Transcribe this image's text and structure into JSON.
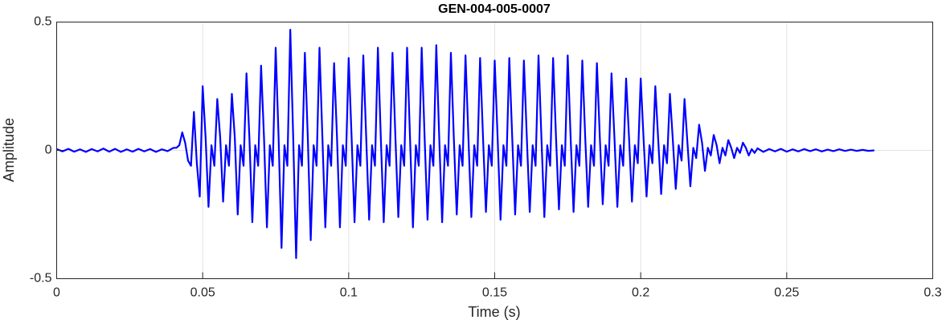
{
  "chart_data": {
    "type": "line",
    "title": "GEN-004-005-0007",
    "xlabel": "Time (s)",
    "ylabel": "Amplitude",
    "color": "#0000ff",
    "grid": true,
    "xlim": [
      0,
      0.3
    ],
    "ylim": [
      -0.5,
      0.5
    ],
    "xticks": [
      0,
      0.05,
      0.1,
      0.15,
      0.2,
      0.25,
      0.3
    ],
    "yticks": [
      -0.5,
      0,
      0.5
    ],
    "x": [
      0,
      0.002,
      0.004,
      0.006,
      0.008,
      0.01,
      0.012,
      0.014,
      0.016,
      0.018,
      0.02,
      0.022,
      0.024,
      0.026,
      0.028,
      0.03,
      0.032,
      0.034,
      0.036,
      0.038,
      0.04,
      0.041,
      0.042,
      0.043,
      0.044,
      0.045,
      0.046,
      0.047,
      0.048,
      0.049,
      0.05,
      0.051,
      0.052,
      0.053,
      0.054,
      0.055,
      0.056,
      0.057,
      0.058,
      0.059,
      0.06,
      0.061,
      0.062,
      0.063,
      0.064,
      0.065,
      0.066,
      0.067,
      0.068,
      0.069,
      0.07,
      0.071,
      0.072,
      0.073,
      0.074,
      0.075,
      0.076,
      0.077,
      0.078,
      0.079,
      0.08,
      0.081,
      0.082,
      0.083,
      0.084,
      0.085,
      0.086,
      0.087,
      0.088,
      0.089,
      0.09,
      0.091,
      0.092,
      0.093,
      0.094,
      0.095,
      0.096,
      0.097,
      0.098,
      0.099,
      0.1,
      0.101,
      0.102,
      0.103,
      0.104,
      0.105,
      0.106,
      0.107,
      0.108,
      0.109,
      0.11,
      0.111,
      0.112,
      0.113,
      0.114,
      0.115,
      0.116,
      0.117,
      0.118,
      0.119,
      0.12,
      0.121,
      0.122,
      0.123,
      0.124,
      0.125,
      0.126,
      0.127,
      0.128,
      0.129,
      0.13,
      0.131,
      0.132,
      0.133,
      0.134,
      0.135,
      0.136,
      0.137,
      0.138,
      0.139,
      0.14,
      0.141,
      0.142,
      0.143,
      0.144,
      0.145,
      0.146,
      0.147,
      0.148,
      0.149,
      0.15,
      0.151,
      0.152,
      0.153,
      0.154,
      0.155,
      0.156,
      0.157,
      0.158,
      0.159,
      0.16,
      0.161,
      0.162,
      0.163,
      0.164,
      0.165,
      0.166,
      0.167,
      0.168,
      0.169,
      0.17,
      0.171,
      0.172,
      0.173,
      0.174,
      0.175,
      0.176,
      0.177,
      0.178,
      0.179,
      0.18,
      0.181,
      0.182,
      0.183,
      0.184,
      0.185,
      0.186,
      0.187,
      0.188,
      0.189,
      0.19,
      0.191,
      0.192,
      0.193,
      0.194,
      0.195,
      0.196,
      0.197,
      0.198,
      0.199,
      0.2,
      0.201,
      0.202,
      0.203,
      0.204,
      0.205,
      0.206,
      0.207,
      0.208,
      0.209,
      0.21,
      0.211,
      0.212,
      0.213,
      0.214,
      0.215,
      0.216,
      0.217,
      0.218,
      0.219,
      0.22,
      0.221,
      0.222,
      0.223,
      0.224,
      0.225,
      0.226,
      0.227,
      0.228,
      0.229,
      0.23,
      0.231,
      0.232,
      0.233,
      0.234,
      0.235,
      0.236,
      0.237,
      0.238,
      0.239,
      0.24,
      0.242,
      0.244,
      0.246,
      0.248,
      0.25,
      0.252,
      0.254,
      0.256,
      0.258,
      0.26,
      0.262,
      0.264,
      0.266,
      0.268,
      0.27,
      0.272,
      0.274,
      0.276,
      0.278,
      0.28
    ],
    "values": [
      0.005,
      -0.004,
      0.006,
      -0.005,
      0.004,
      -0.006,
      0.005,
      -0.004,
      0.007,
      -0.005,
      0.006,
      -0.006,
      0.004,
      -0.005,
      0.006,
      -0.004,
      0.005,
      -0.006,
      0.004,
      -0.003,
      0.01,
      0.01,
      0.02,
      0.07,
      0.03,
      -0.04,
      -0.06,
      0.15,
      -0.05,
      -0.18,
      0.25,
      0.05,
      -0.22,
      0.02,
      -0.06,
      0.2,
      0.05,
      -0.2,
      0.02,
      -0.06,
      0.22,
      0.05,
      -0.25,
      0.02,
      -0.06,
      0.3,
      0.05,
      -0.28,
      0.02,
      -0.06,
      0.33,
      0.05,
      -0.3,
      0.02,
      -0.06,
      0.4,
      0.05,
      -0.38,
      0.02,
      -0.06,
      0.47,
      0.05,
      -0.42,
      0.02,
      -0.06,
      0.38,
      0.05,
      -0.35,
      0.02,
      -0.06,
      0.4,
      0.05,
      -0.3,
      0.02,
      -0.06,
      0.34,
      0.05,
      -0.3,
      0.02,
      -0.06,
      0.36,
      0.05,
      -0.28,
      0.02,
      -0.06,
      0.37,
      0.05,
      -0.27,
      0.02,
      -0.06,
      0.4,
      0.05,
      -0.28,
      0.02,
      -0.06,
      0.38,
      0.05,
      -0.26,
      0.02,
      -0.06,
      0.4,
      0.05,
      -0.3,
      0.02,
      -0.06,
      0.4,
      0.05,
      -0.27,
      0.02,
      -0.06,
      0.41,
      0.05,
      -0.28,
      0.02,
      -0.06,
      0.38,
      0.05,
      -0.25,
      0.02,
      -0.06,
      0.37,
      0.05,
      -0.26,
      0.02,
      -0.06,
      0.36,
      0.05,
      -0.24,
      0.02,
      -0.06,
      0.35,
      0.05,
      -0.27,
      0.02,
      -0.06,
      0.36,
      0.05,
      -0.25,
      0.02,
      -0.06,
      0.35,
      0.05,
      -0.24,
      0.02,
      -0.06,
      0.37,
      0.05,
      -0.26,
      0.02,
      -0.06,
      0.36,
      0.05,
      -0.23,
      0.02,
      -0.06,
      0.37,
      0.05,
      -0.24,
      0.02,
      -0.06,
      0.35,
      0.05,
      -0.22,
      0.02,
      -0.06,
      0.34,
      0.05,
      -0.21,
      0.02,
      -0.06,
      0.3,
      0.05,
      -0.22,
      0.02,
      -0.06,
      0.28,
      0.05,
      -0.2,
      0.02,
      -0.05,
      0.28,
      0.04,
      -0.18,
      0.02,
      -0.05,
      0.25,
      0.04,
      -0.17,
      0.02,
      -0.05,
      0.22,
      0.04,
      -0.15,
      0.02,
      -0.04,
      0.2,
      0.03,
      -0.14,
      0.01,
      -0.03,
      0.1,
      0.03,
      -0.08,
      0.01,
      -0.02,
      0.06,
      0.02,
      -0.05,
      0.01,
      -0.02,
      0.04,
      0.01,
      -0.03,
      0.01,
      -0.01,
      0.03,
      0.01,
      -0.02,
      0.005,
      -0.01,
      0.008,
      -0.006,
      0.005,
      -0.004,
      0.006,
      -0.005,
      0.004,
      -0.004,
      0.005,
      -0.003,
      0.004,
      -0.004,
      0.003,
      -0.003,
      0.004,
      -0.002,
      0.003,
      -0.002,
      0.002,
      -0.002,
      0
    ]
  }
}
